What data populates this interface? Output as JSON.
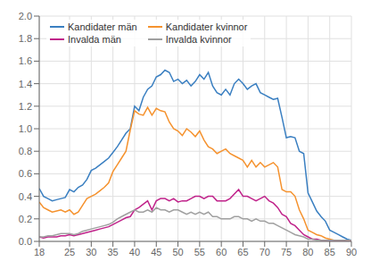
{
  "chart_data": {
    "type": "line",
    "x": [
      18,
      19,
      20,
      21,
      22,
      23,
      24,
      25,
      26,
      27,
      28,
      29,
      30,
      31,
      32,
      33,
      34,
      35,
      36,
      37,
      38,
      39,
      40,
      41,
      42,
      43,
      44,
      45,
      46,
      47,
      48,
      49,
      50,
      51,
      52,
      53,
      54,
      55,
      56,
      57,
      58,
      59,
      60,
      61,
      62,
      63,
      64,
      65,
      66,
      67,
      68,
      69,
      70,
      71,
      72,
      73,
      74,
      75,
      76,
      77,
      78,
      79,
      80,
      81,
      82,
      83,
      84,
      85,
      86,
      87,
      88,
      89,
      90
    ],
    "series": [
      {
        "name": "Kandidater män",
        "color": "#3a7fc1",
        "values": [
          0.47,
          0.4,
          0.38,
          0.36,
          0.37,
          0.38,
          0.39,
          0.46,
          0.44,
          0.48,
          0.5,
          0.55,
          0.63,
          0.65,
          0.68,
          0.71,
          0.74,
          0.79,
          0.84,
          0.9,
          0.96,
          1.0,
          1.2,
          1.16,
          1.28,
          1.35,
          1.38,
          1.46,
          1.48,
          1.52,
          1.5,
          1.42,
          1.44,
          1.4,
          1.43,
          1.38,
          1.42,
          1.48,
          1.44,
          1.5,
          1.38,
          1.32,
          1.3,
          1.35,
          1.3,
          1.4,
          1.44,
          1.4,
          1.35,
          1.38,
          1.4,
          1.32,
          1.3,
          1.28,
          1.26,
          1.27,
          1.1,
          0.92,
          0.93,
          0.92,
          0.8,
          0.78,
          0.43,
          0.35,
          0.27,
          0.22,
          0.18,
          0.1,
          0.08,
          0.06,
          0.04,
          0.02,
          0.01
        ]
      },
      {
        "name": "Kandidater kvinnor",
        "color": "#f5922e",
        "values": [
          0.35,
          0.3,
          0.28,
          0.26,
          0.27,
          0.28,
          0.26,
          0.28,
          0.24,
          0.26,
          0.32,
          0.38,
          0.4,
          0.42,
          0.45,
          0.48,
          0.52,
          0.62,
          0.68,
          0.74,
          0.8,
          0.99,
          1.16,
          1.13,
          1.12,
          1.19,
          1.12,
          1.18,
          1.16,
          1.15,
          1.06,
          1.0,
          0.98,
          0.94,
          1.0,
          0.97,
          0.93,
          0.98,
          0.9,
          0.84,
          0.82,
          0.78,
          0.8,
          0.82,
          0.78,
          0.76,
          0.74,
          0.72,
          0.66,
          0.72,
          0.66,
          0.7,
          0.66,
          0.68,
          0.7,
          0.66,
          0.46,
          0.44,
          0.44,
          0.4,
          0.28,
          0.2,
          0.1,
          0.08,
          0.06,
          0.05,
          0.03,
          0.02,
          0.01,
          0.01,
          0.01,
          0.01,
          0.01
        ]
      },
      {
        "name": "Invalda män",
        "color": "#c0228a",
        "values": [
          0.04,
          0.03,
          0.04,
          0.04,
          0.04,
          0.05,
          0.05,
          0.06,
          0.05,
          0.06,
          0.07,
          0.08,
          0.09,
          0.1,
          0.11,
          0.12,
          0.13,
          0.15,
          0.17,
          0.19,
          0.21,
          0.22,
          0.28,
          0.3,
          0.33,
          0.36,
          0.28,
          0.36,
          0.38,
          0.38,
          0.36,
          0.38,
          0.35,
          0.36,
          0.36,
          0.38,
          0.4,
          0.4,
          0.38,
          0.4,
          0.4,
          0.36,
          0.36,
          0.36,
          0.38,
          0.42,
          0.46,
          0.4,
          0.4,
          0.38,
          0.36,
          0.38,
          0.4,
          0.36,
          0.34,
          0.3,
          0.24,
          0.22,
          0.16,
          0.14,
          0.1,
          0.06,
          0.04,
          0.02,
          0.02,
          0.01,
          0.01,
          0.01,
          0.01,
          0.01,
          0.01,
          0.01,
          0.01
        ]
      },
      {
        "name": "Invalda kvinnor",
        "color": "#a0a0a0",
        "values": [
          0.04,
          0.04,
          0.05,
          0.05,
          0.06,
          0.07,
          0.07,
          0.07,
          0.06,
          0.07,
          0.09,
          0.1,
          0.11,
          0.12,
          0.13,
          0.14,
          0.15,
          0.17,
          0.2,
          0.22,
          0.24,
          0.26,
          0.28,
          0.26,
          0.26,
          0.28,
          0.26,
          0.3,
          0.28,
          0.28,
          0.26,
          0.28,
          0.28,
          0.26,
          0.24,
          0.26,
          0.24,
          0.26,
          0.24,
          0.26,
          0.22,
          0.22,
          0.2,
          0.2,
          0.2,
          0.22,
          0.22,
          0.2,
          0.2,
          0.18,
          0.2,
          0.18,
          0.18,
          0.16,
          0.16,
          0.14,
          0.12,
          0.1,
          0.08,
          0.06,
          0.05,
          0.04,
          0.02,
          0.02,
          0.01,
          0.01,
          0.01,
          0.01,
          0.01,
          0.01,
          0.01,
          0.01,
          0.01
        ]
      }
    ],
    "xlim": [
      18,
      90
    ],
    "ylim": [
      0,
      2.0
    ],
    "xticks": [
      18,
      25,
      30,
      35,
      40,
      45,
      50,
      55,
      60,
      65,
      70,
      75,
      80,
      85,
      90
    ],
    "yticks": [
      {
        "value": 0,
        "label": "0.0"
      },
      0.2,
      0.4,
      0.6,
      0.8,
      {
        "value": 1,
        "label": "1.0"
      },
      1.2,
      1.4,
      1.6,
      1.8,
      {
        "value": 2,
        "label": "2.0"
      }
    ],
    "grid": true,
    "legend": "upper left"
  }
}
